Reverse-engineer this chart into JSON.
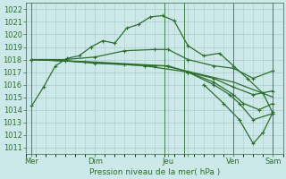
{
  "bg_color": "#cce8e8",
  "grid_color": "#aacccc",
  "line_color": "#2d6e2d",
  "title": "Pression niveau de la mer( hPa )",
  "ylim": [
    1010.5,
    1022.5
  ],
  "ytick_vals": [
    1011,
    1012,
    1013,
    1014,
    1015,
    1016,
    1017,
    1018,
    1019,
    1020,
    1021,
    1022
  ],
  "xlim": [
    0,
    13
  ],
  "xtick_positions": [
    0.3,
    3.5,
    7.2,
    8.2,
    10.5,
    12.5
  ],
  "xtick_labels": [
    "Mer",
    "Dim",
    "Jeu",
    "",
    "Ven",
    "Sam"
  ],
  "vline_positions": [
    0.3,
    7.0,
    8.0,
    10.5,
    12.5
  ],
  "s1_x": [
    0.3,
    0.9,
    1.5,
    2.1,
    2.7,
    3.3,
    3.9,
    4.5,
    5.1,
    5.7,
    6.3,
    6.9,
    7.5,
    8.2,
    9.0,
    9.8,
    10.5,
    11.2,
    12.0,
    12.5
  ],
  "s1_y": [
    1014.3,
    1015.8,
    1017.5,
    1018.1,
    1018.3,
    1019.0,
    1019.5,
    1019.3,
    1020.5,
    1020.8,
    1021.4,
    1021.5,
    1021.1,
    1019.1,
    1018.3,
    1018.5,
    1017.5,
    1016.5,
    1015.3,
    1013.7
  ],
  "s2_x": [
    0.3,
    2.0,
    3.5,
    5.0,
    6.5,
    7.2,
    8.2,
    9.5,
    10.5,
    11.5,
    12.5
  ],
  "s2_y": [
    1018.0,
    1018.0,
    1018.2,
    1018.7,
    1018.8,
    1018.8,
    1018.0,
    1017.5,
    1017.3,
    1016.5,
    1017.1
  ],
  "s3_x": [
    0.3,
    2.0,
    3.5,
    5.0,
    6.5,
    7.2,
    8.2,
    9.5,
    10.5,
    11.5,
    12.5
  ],
  "s3_y": [
    1018.0,
    1017.9,
    1017.7,
    1017.6,
    1017.5,
    1017.5,
    1017.0,
    1016.5,
    1015.8,
    1015.2,
    1015.5
  ],
  "s4_x": [
    0.3,
    3.5,
    7.0,
    10.5,
    12.5
  ],
  "s4_y": [
    1018.0,
    1017.8,
    1017.5,
    1016.2,
    1015.0
  ],
  "s5_x": [
    0.3,
    3.0,
    6.0,
    8.2,
    9.5,
    10.5,
    11.0,
    11.8,
    12.5
  ],
  "s5_y": [
    1018.0,
    1017.8,
    1017.5,
    1017.0,
    1016.2,
    1015.2,
    1014.5,
    1014.0,
    1014.5
  ],
  "s6_x": [
    8.2,
    9.5,
    10.3,
    10.8,
    11.5,
    12.5
  ],
  "s6_y": [
    1017.0,
    1016.0,
    1015.2,
    1014.5,
    1013.2,
    1013.7
  ],
  "s7_x": [
    9.0,
    10.0,
    10.8,
    11.5,
    12.0,
    12.5
  ],
  "s7_y": [
    1016.0,
    1014.5,
    1013.2,
    1011.3,
    1012.2,
    1013.8
  ]
}
